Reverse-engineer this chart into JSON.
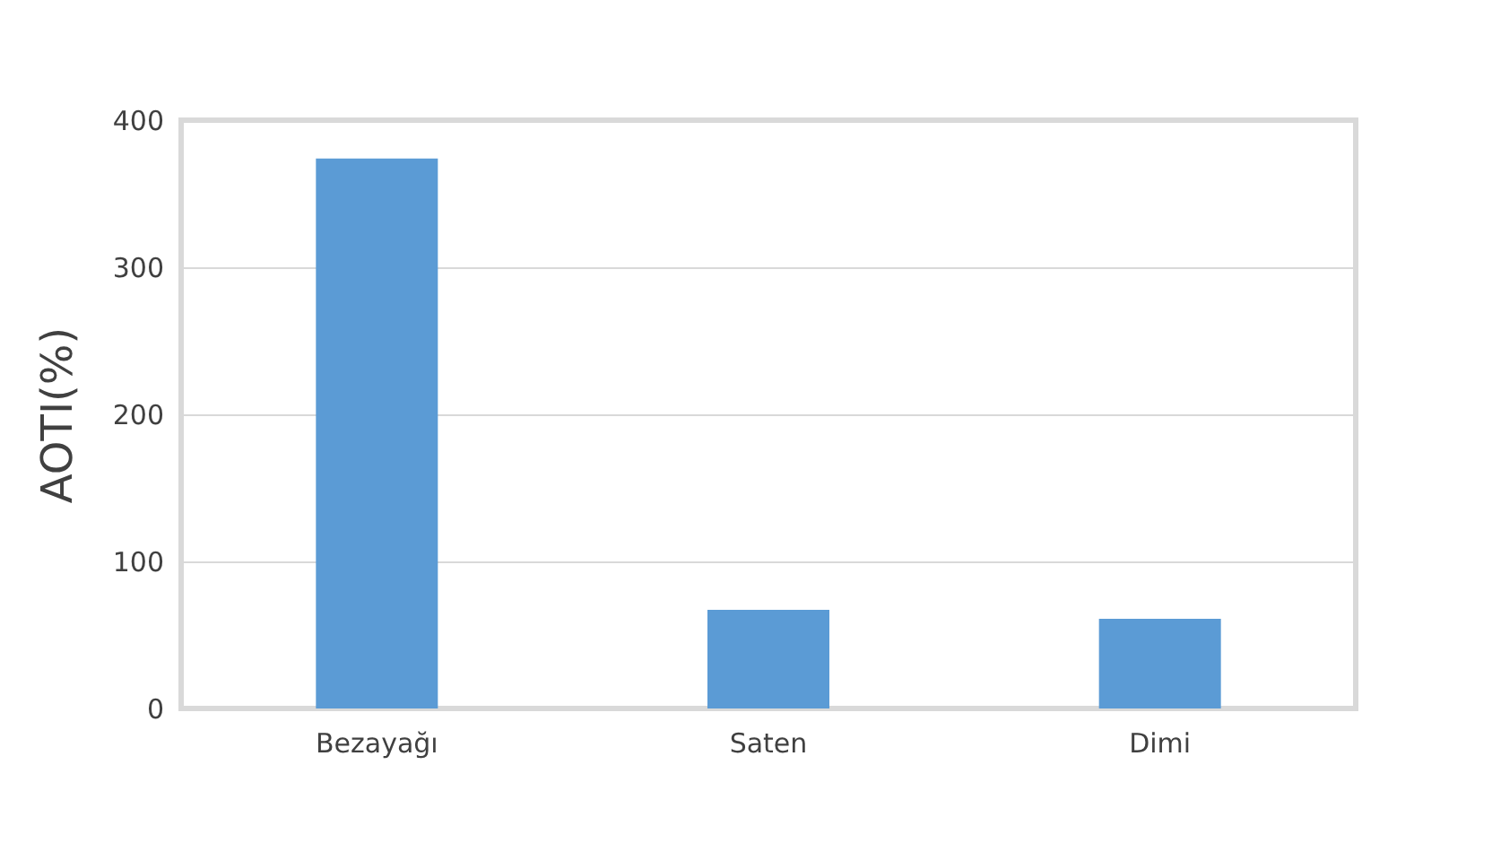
{
  "chart_data": {
    "type": "bar",
    "ylabel": "AOTI(%)",
    "categories": [
      "Bezayağı",
      "Saten",
      "Dimi"
    ],
    "values": [
      374,
      67,
      61
    ],
    "color": "#5b9bd5",
    "ylim": [
      0,
      400
    ],
    "yticks": [
      0,
      100,
      200,
      300,
      400
    ],
    "grid": "y"
  }
}
